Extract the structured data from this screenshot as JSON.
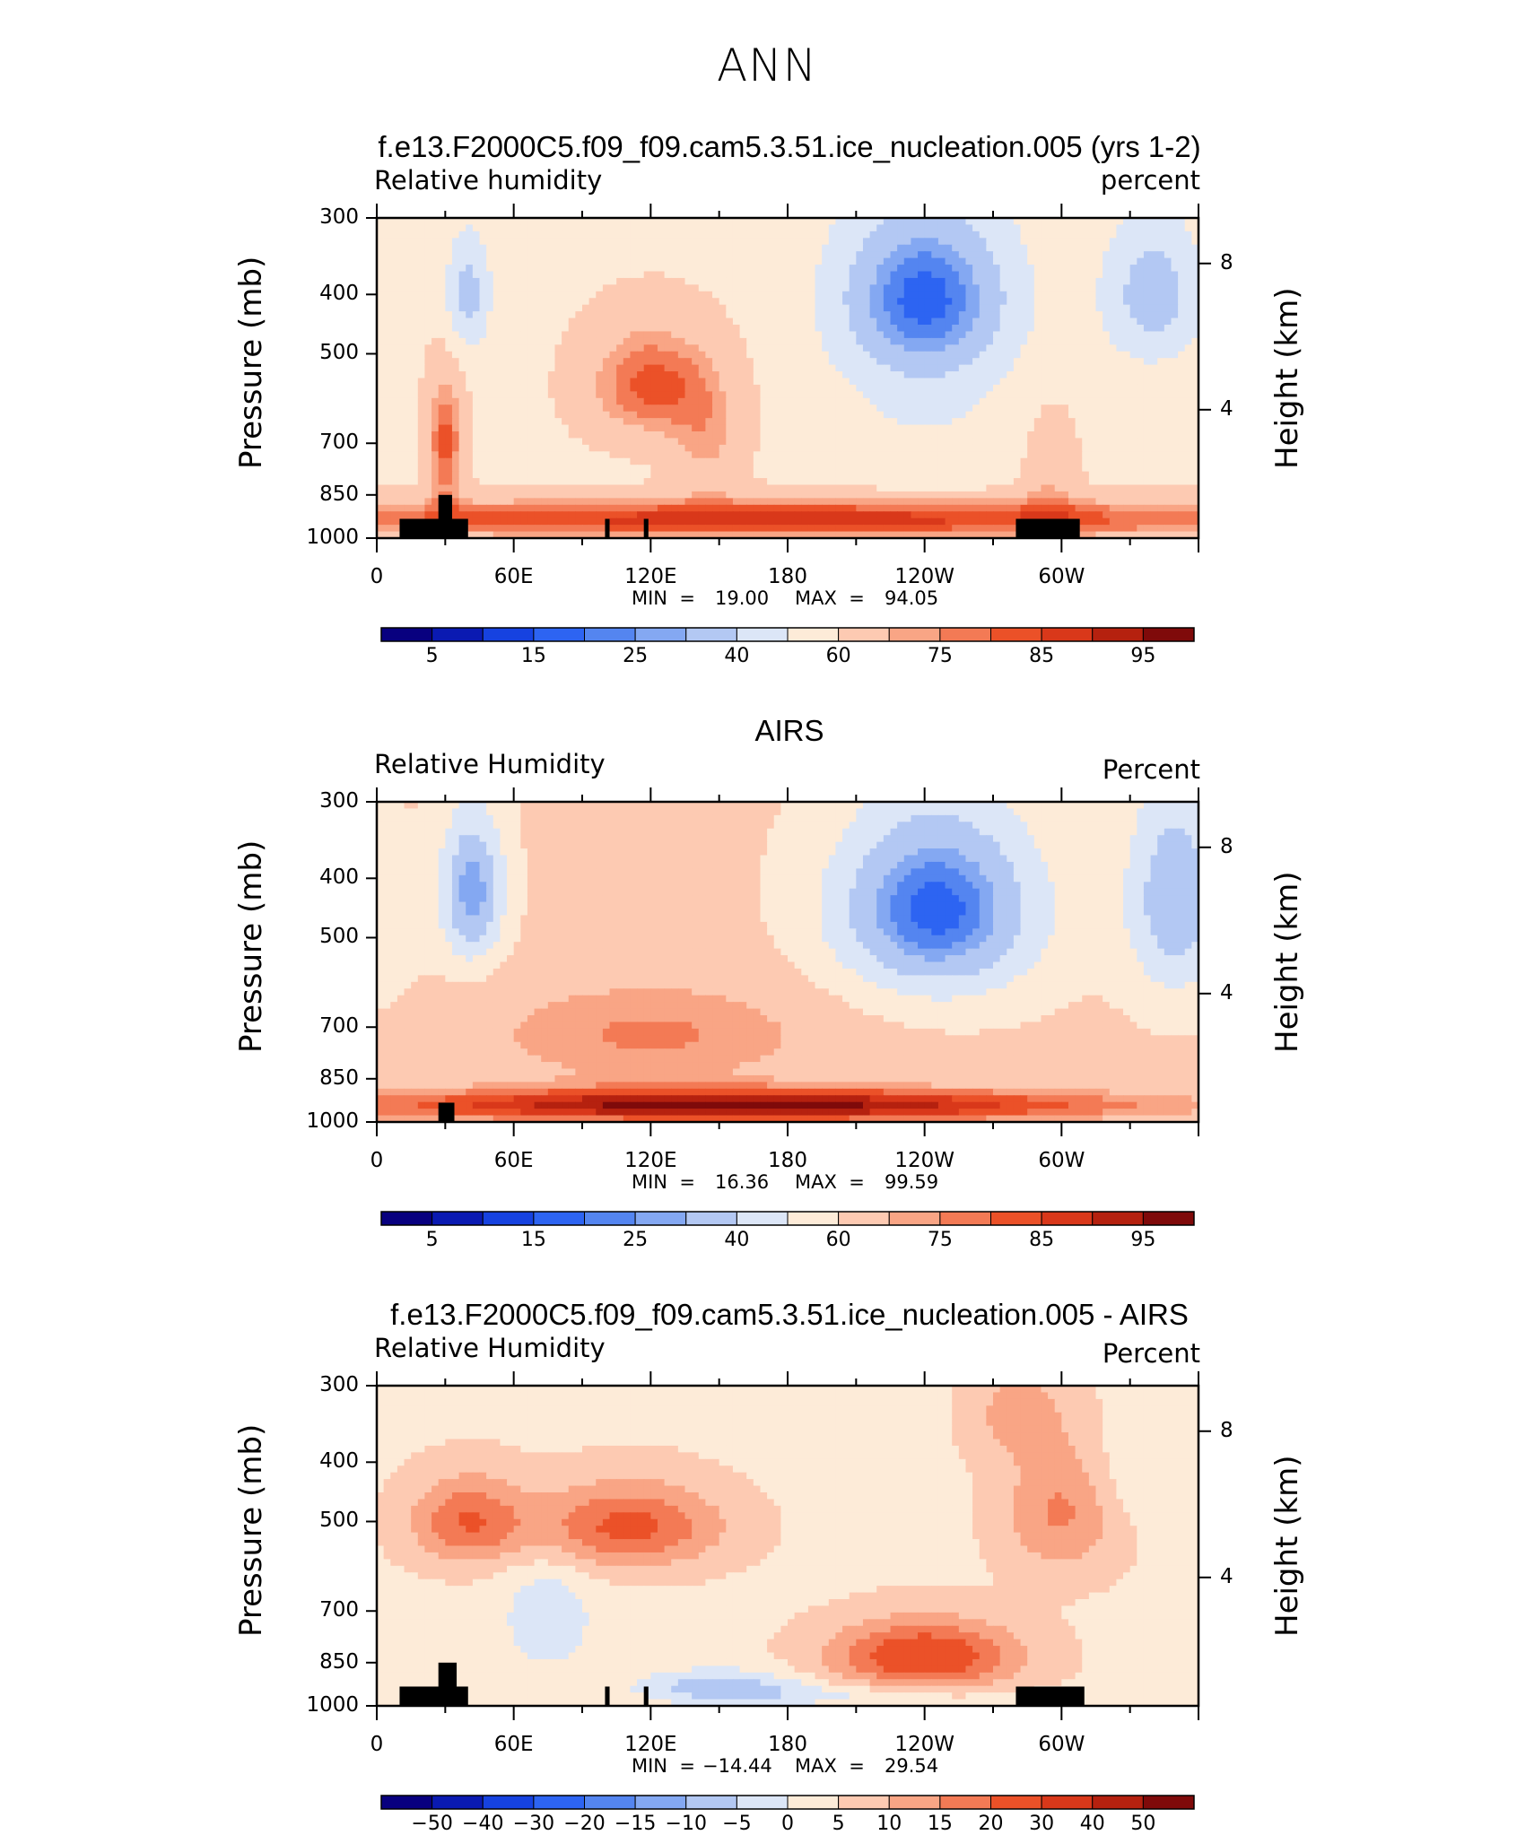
{
  "title": "ANN",
  "palette": [
    "#08007f",
    "#0a1ab2",
    "#1642e0",
    "#2d64f2",
    "#5485f0",
    "#84a8f2",
    "#b3c8f3",
    "#dce6f7",
    "#fdebd8",
    "#fdcab2",
    "#f9a585",
    "#f37a55",
    "#eb5128",
    "#d9381a",
    "#b5210f",
    "#7f0a0a"
  ],
  "panels": [
    {
      "title": "f.e13.F2000C5.f09_f09.cam5.3.51.ice_nucleation.005 (yrs 1-2)",
      "left_label": "Relative  humidity",
      "right_label": "percent",
      "y_label": "Pressure  (mb)",
      "y2_label": "Height  (km)",
      "min_label": "MIN  =",
      "min_value": "19.00",
      "max_label": "MAX  =",
      "max_value": "94.05",
      "cbar_labels": [
        "5",
        "15",
        "25",
        "40",
        "60",
        "75",
        "85",
        "95"
      ]
    },
    {
      "title": "AIRS",
      "left_label": "Relative  Humidity",
      "right_label": "Percent",
      "y_label": "Pressure  (mb)",
      "y2_label": "Height  (km)",
      "min_label": "MIN  =",
      "min_value": "16.36",
      "max_label": "MAX  =",
      "max_value": "99.59",
      "cbar_labels": [
        "5",
        "15",
        "25",
        "40",
        "60",
        "75",
        "85",
        "95"
      ]
    },
    {
      "title": "f.e13.F2000C5.f09_f09.cam5.3.51.ice_nucleation.005 - AIRS",
      "left_label": "Relative  Humidity",
      "right_label": "Percent",
      "y_label": "Pressure  (mb)",
      "y2_label": "Height  (km)",
      "min_label": "MIN  =",
      "min_value": "−14.44",
      "max_label": "MAX  =",
      "max_value": "29.54",
      "cbar_labels": [
        "−50",
        "−40",
        "−30",
        "−20",
        "−15",
        "−10",
        "−5",
        "0",
        "5",
        "10",
        "15",
        "20",
        "30",
        "40",
        "50"
      ]
    }
  ],
  "chart_data": [
    {
      "type": "heatmap",
      "title": "f.e13.F2000C5.f09_f09.cam5.3.51.ice_nucleation.005 (yrs 1-2)",
      "xlabel": "",
      "ylabel": "Pressure (mb)",
      "x_ticks": [
        "0",
        "60E",
        "120E",
        "180",
        "120W",
        "60W"
      ],
      "y_ticks": [
        "300",
        "400",
        "500",
        "700",
        "850",
        "1000"
      ],
      "y2_ticks": [
        "8",
        "4"
      ],
      "y2label": "Height (km)",
      "xlim": [
        0,
        360
      ],
      "ylim": [
        1000,
        300
      ],
      "y_scale": "log-pressure",
      "levels": [
        5,
        10,
        15,
        20,
        25,
        30,
        40,
        50,
        60,
        70,
        75,
        80,
        85,
        90,
        95
      ],
      "min": 19.0,
      "max": 94.05,
      "features": [
        {
          "lon": 240,
          "p": 400,
          "value": 20
        },
        {
          "lon": 40,
          "p": 400,
          "value": 40
        },
        {
          "lon": 340,
          "p": 400,
          "value": 35
        },
        {
          "lon": 120,
          "p": 550,
          "value": 82
        },
        {
          "lon": 30,
          "p": 700,
          "value": 82
        },
        {
          "lon": 180,
          "p": 920,
          "value": 90
        },
        {
          "lon": 300,
          "p": 920,
          "value": 88
        }
      ]
    },
    {
      "type": "heatmap",
      "title": "AIRS",
      "xlabel": "",
      "ylabel": "Pressure (mb)",
      "x_ticks": [
        "0",
        "60E",
        "120E",
        "180",
        "120W",
        "60W"
      ],
      "y_ticks": [
        "300",
        "400",
        "500",
        "700",
        "850",
        "1000"
      ],
      "y2_ticks": [
        "8",
        "4"
      ],
      "y2label": "Height (km)",
      "xlim": [
        0,
        360
      ],
      "ylim": [
        1000,
        300
      ],
      "y_scale": "log-pressure",
      "levels": [
        5,
        10,
        15,
        20,
        25,
        30,
        40,
        50,
        60,
        70,
        75,
        80,
        85,
        90,
        95
      ],
      "min": 16.36,
      "max": 99.59,
      "features": [
        {
          "lon": 245,
          "p": 450,
          "value": 18
        },
        {
          "lon": 42,
          "p": 420,
          "value": 25
        },
        {
          "lon": 350,
          "p": 450,
          "value": 30
        },
        {
          "lon": 155,
          "p": 930,
          "value": 97
        },
        {
          "lon": 100,
          "p": 930,
          "value": 92
        }
      ]
    },
    {
      "type": "heatmap",
      "title": "f.e13.F2000C5.f09_f09.cam5.3.51.ice_nucleation.005 - AIRS",
      "xlabel": "",
      "ylabel": "Pressure (mb)",
      "x_ticks": [
        "0",
        "60E",
        "120E",
        "180",
        "120W",
        "60W"
      ],
      "y_ticks": [
        "300",
        "400",
        "500",
        "700",
        "850",
        "1000"
      ],
      "y2_ticks": [
        "8",
        "4"
      ],
      "y2label": "Height (km)",
      "xlim": [
        0,
        360
      ],
      "ylim": [
        1000,
        300
      ],
      "y_scale": "log-pressure",
      "levels": [
        -50,
        -40,
        -30,
        -20,
        -15,
        -10,
        -5,
        0,
        5,
        10,
        15,
        20,
        30,
        40,
        50
      ],
      "min": -14.44,
      "max": 29.54,
      "features": [
        {
          "lon": 240,
          "p": 820,
          "value": 28
        },
        {
          "lon": 120,
          "p": 500,
          "value": 22
        },
        {
          "lon": 40,
          "p": 500,
          "value": 22
        },
        {
          "lon": 155,
          "p": 930,
          "value": -12
        },
        {
          "lon": 70,
          "p": 700,
          "value": -6
        }
      ]
    }
  ]
}
